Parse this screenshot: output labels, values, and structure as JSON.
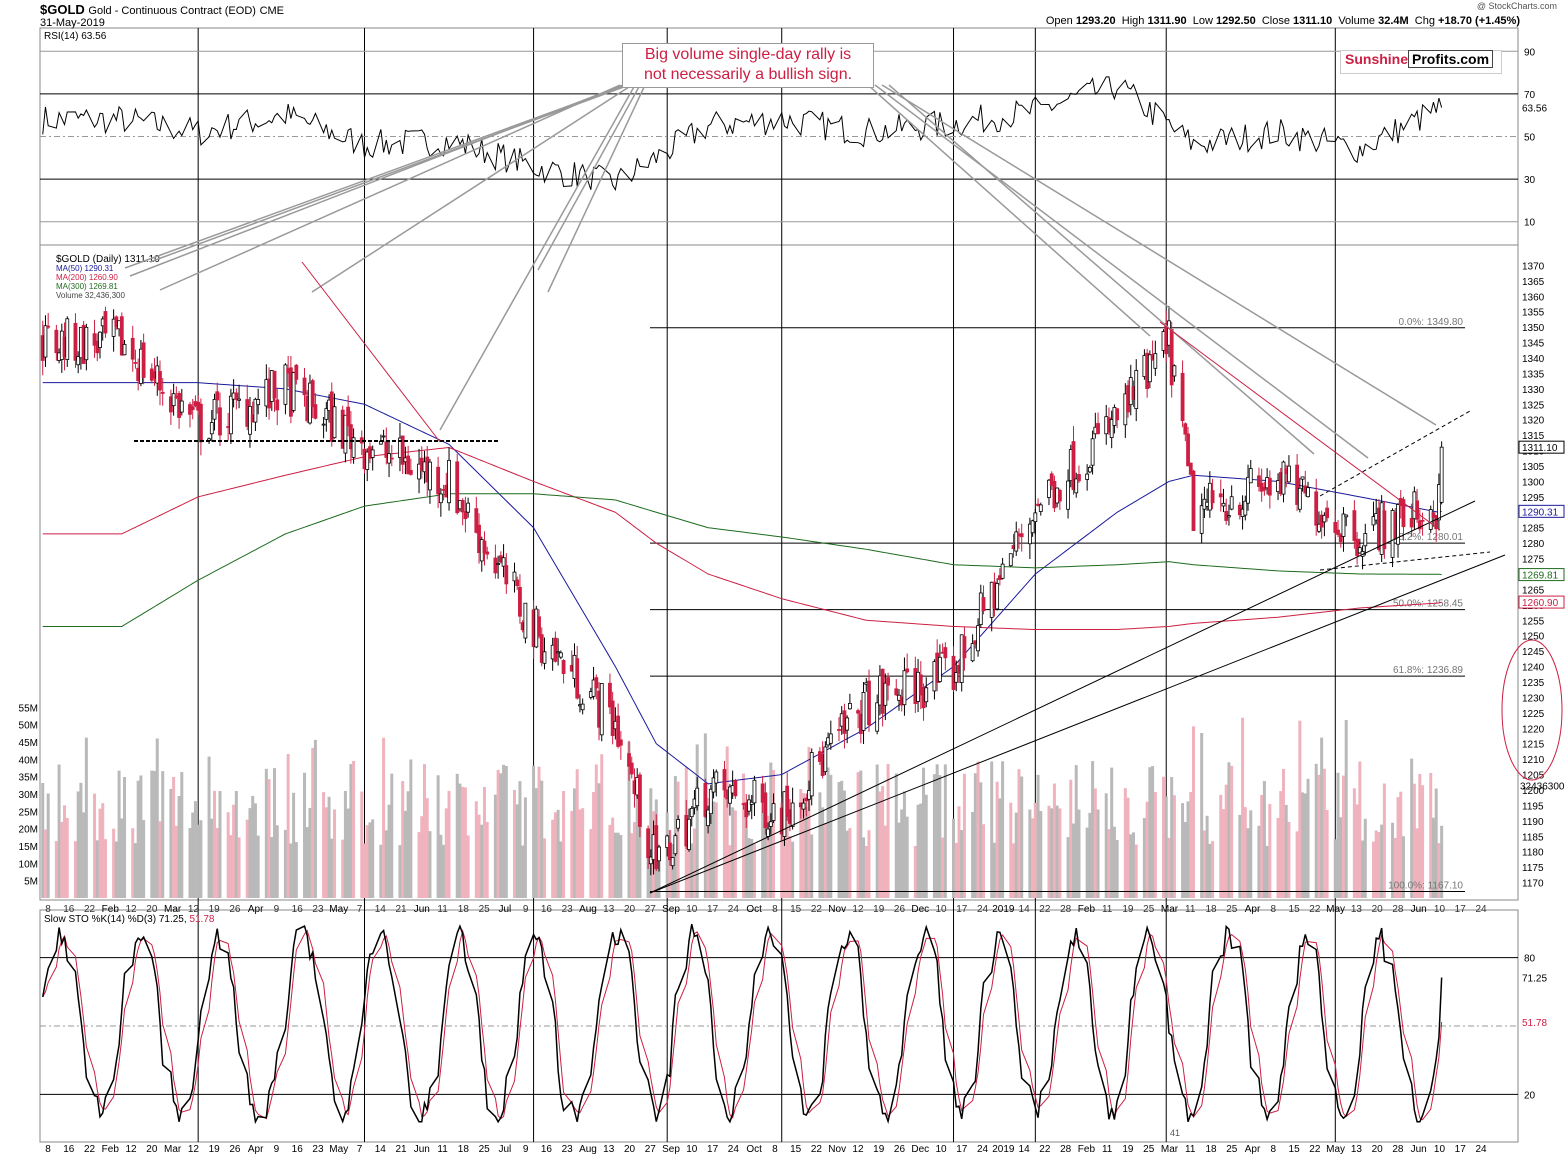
{
  "header": {
    "symbol": "$GOLD",
    "description": "Gold - Continuous Contract (EOD)",
    "exchange": "CME",
    "date": "31-May-2019",
    "open_label": "Open",
    "open": "1293.20",
    "high_label": "High",
    "high": "1311.90",
    "low_label": "Low",
    "low": "1292.50",
    "close_label": "Close",
    "close": "1311.10",
    "volume_label": "Volume",
    "volume": "32.4M",
    "chg_label": "Chg",
    "chg": "+18.70 (+1.45%)",
    "watermark": "@ StockCharts.com"
  },
  "callout": {
    "line1": "Big volume single-day rally is",
    "line2": "not necessarily a bullish sign."
  },
  "logo": {
    "part1": "Sunshine",
    "part2": "Profits.com"
  },
  "colors": {
    "up_candle": "#000000",
    "down_candle": "#cc1f43",
    "ma50": "#1a1a9c",
    "ma200": "#cc1f43",
    "ma300": "#1f6b1f",
    "volume_up": "#b9b9b9",
    "volume_down": "#f0b3bd",
    "annotation_lines": "#999999"
  },
  "chart_data": [
    {
      "type": "line",
      "panel": "rsi",
      "legend": "RSI(14) 63.56",
      "last_value": 63.56,
      "ylim": [
        0,
        100
      ],
      "ticks": [
        10,
        30,
        50,
        70,
        90
      ],
      "tick_labels": [
        "10",
        "30",
        "50",
        "70",
        "90"
      ],
      "last_label": "63.56",
      "x_dates": [
        "2018-02-01",
        "2018-03-01",
        "2018-04-02",
        "2018-05-01",
        "2018-06-01",
        "2018-07-02",
        "2018-08-01",
        "2018-09-04",
        "2018-10-01",
        "2018-11-01",
        "2018-12-03",
        "2019-01-02",
        "2019-02-01",
        "2019-03-01",
        "2019-04-01",
        "2019-05-01",
        "2019-05-31"
      ],
      "values": [
        58,
        52,
        60,
        46,
        48,
        36,
        28,
        55,
        58,
        52,
        56,
        62,
        74,
        46,
        52,
        44,
        63.56
      ]
    },
    {
      "type": "candlestick",
      "panel": "price",
      "legend": [
        "$GOLD (Daily) 1311.10",
        "MA(50) 1290.31",
        "MA(200) 1260.90",
        "MA(300) 1269.81",
        "Volume 32,436,300"
      ],
      "ylim": [
        1165,
        1375
      ],
      "ticks": [
        1170,
        1175,
        1180,
        1185,
        1190,
        1195,
        1200,
        1205,
        1210,
        1215,
        1220,
        1225,
        1230,
        1235,
        1240,
        1245,
        1250,
        1255,
        1260,
        1265,
        1270,
        1275,
        1280,
        1285,
        1290,
        1295,
        1300,
        1305,
        1310,
        1315,
        1320,
        1325,
        1330,
        1335,
        1340,
        1345,
        1350,
        1355,
        1360,
        1365,
        1370
      ],
      "tick_labels": [
        "1170",
        "1175",
        "1180",
        "1185",
        "1190",
        "1195",
        "1200",
        "1205",
        "1210",
        "1215",
        "1220",
        "1225",
        "1230",
        "1235",
        "1240",
        "1245",
        "1250",
        "1255",
        "1260",
        "1265",
        "1270",
        "1275",
        "1280",
        "1285",
        "1290",
        "1295",
        "1300",
        "1305",
        "1310",
        "1315",
        "1320",
        "1325",
        "1330",
        "1335",
        "1340",
        "1345",
        "1350",
        "1355",
        "1360",
        "1365",
        "1370"
      ],
      "x_dates": [
        "2018-02-01",
        "2018-03-01",
        "2018-04-02",
        "2018-05-01",
        "2018-06-01",
        "2018-07-02",
        "2018-08-01",
        "2018-08-16",
        "2018-09-04",
        "2018-10-01",
        "2018-11-01",
        "2018-12-03",
        "2019-01-02",
        "2019-02-01",
        "2019-02-20",
        "2019-03-01",
        "2019-04-01",
        "2019-05-01",
        "2019-05-30",
        "2019-05-31"
      ],
      "close": [
        1345,
        1318,
        1330,
        1312,
        1300,
        1252,
        1222,
        1175,
        1200,
        1193,
        1228,
        1238,
        1292,
        1320,
        1345,
        1290,
        1300,
        1283,
        1292,
        1311.1
      ],
      "ma50": [
        1332,
        1332,
        1330,
        1325,
        1312,
        1285,
        1240,
        1215,
        1202,
        1205,
        1220,
        1240,
        1270,
        1290,
        1300,
        1302,
        1300,
        1295,
        1290,
        1290.31
      ],
      "ma200": [
        1283,
        1295,
        1302,
        1308,
        1311,
        1300,
        1290,
        1280,
        1270,
        1262,
        1255,
        1253,
        1252,
        1252,
        1253,
        1254,
        1256,
        1259,
        1260.6,
        1260.9
      ],
      "ma300": [
        1253,
        1268,
        1283,
        1292,
        1296,
        1296,
        1294,
        1290,
        1285,
        1282,
        1278,
        1273,
        1272,
        1273,
        1274,
        1273,
        1271,
        1270,
        1269.9,
        1269.81
      ],
      "last_labels": [
        "1311.10",
        "1290.31",
        "1269.81",
        "1260.90"
      ],
      "fibonacci": [
        {
          "label": "0.0%: 1349.80",
          "value": 1349.8
        },
        {
          "label": "38.2%: 1280.01",
          "value": 1280.01
        },
        {
          "label": "50.0%: 1258.45",
          "value": 1258.45
        },
        {
          "label": "61.8%: 1236.89",
          "value": 1236.89
        },
        {
          "label": "100.0%: 1167.10",
          "value": 1167.1
        }
      ]
    },
    {
      "type": "bar",
      "panel": "volume",
      "ticks_millions": [
        5,
        10,
        15,
        20,
        25,
        30,
        35,
        40,
        45,
        50,
        55
      ],
      "tick_labels": [
        "5M",
        "10M",
        "15M",
        "20M",
        "25M",
        "30M",
        "35M",
        "40M",
        "45M",
        "50M",
        "55M"
      ],
      "last_label": "32436300",
      "last_value": 32436300
    },
    {
      "type": "line",
      "panel": "stochastic",
      "legend": "Slow STO %K(14) %D(3) 71.25, 51.78",
      "legend_main": "Slow STO %K(14) %D(3) 71.25,",
      "legend_d": "51.78",
      "ylim": [
        0,
        100
      ],
      "ticks": [
        20,
        50,
        80
      ],
      "tick_labels": [
        "20",
        "80"
      ],
      "last_labels": [
        "71.25",
        "51.78"
      ],
      "k_last": 71.25,
      "d_last": 51.78
    }
  ],
  "x_axis": {
    "labels_top": [
      "8",
      "16",
      "22",
      "Feb",
      "12",
      "20",
      "Mar",
      "12",
      "19",
      "26",
      "Apr",
      "9",
      "16",
      "23",
      "May",
      "7",
      "14",
      "21",
      "Jun",
      "11",
      "18",
      "25",
      "Jul",
      "9",
      "16",
      "23",
      "Aug",
      "13",
      "20",
      "27",
      "Sep",
      "10",
      "17",
      "24",
      "Oct",
      "8",
      "15",
      "22",
      "Nov",
      "12",
      "19",
      "26",
      "Dec",
      "10",
      "17",
      "24",
      "2019",
      "14",
      "22",
      "28",
      "Feb",
      "11",
      "19",
      "25",
      "Mar",
      "11",
      "18",
      "25",
      "Apr",
      "8",
      "15",
      "22",
      "May",
      "13",
      "20",
      "28",
      "Jun",
      "10",
      "17",
      "24"
    ],
    "labels_bottom": [
      "8",
      "16",
      "22",
      "Feb",
      "12",
      "20",
      "Mar",
      "12",
      "19",
      "26",
      "Apr",
      "9",
      "16",
      "23",
      "May",
      "7",
      "14",
      "21",
      "Jun",
      "11",
      "18",
      "25",
      "Jul",
      "9",
      "16",
      "23",
      "Aug",
      "13",
      "20",
      "27",
      "Sep",
      "10",
      "17",
      "24",
      "Oct",
      "8",
      "15",
      "22",
      "Nov",
      "12",
      "19",
      "26",
      "Dec",
      "10",
      "17",
      "24",
      "2019",
      "14",
      "22",
      "28",
      "Feb",
      "11",
      "19",
      "25",
      "Mar",
      "11",
      "18",
      "25",
      "Apr",
      "8",
      "15",
      "22",
      "May",
      "13",
      "20",
      "28",
      "Jun",
      "10",
      "17",
      "24"
    ],
    "stray_label": "41"
  }
}
